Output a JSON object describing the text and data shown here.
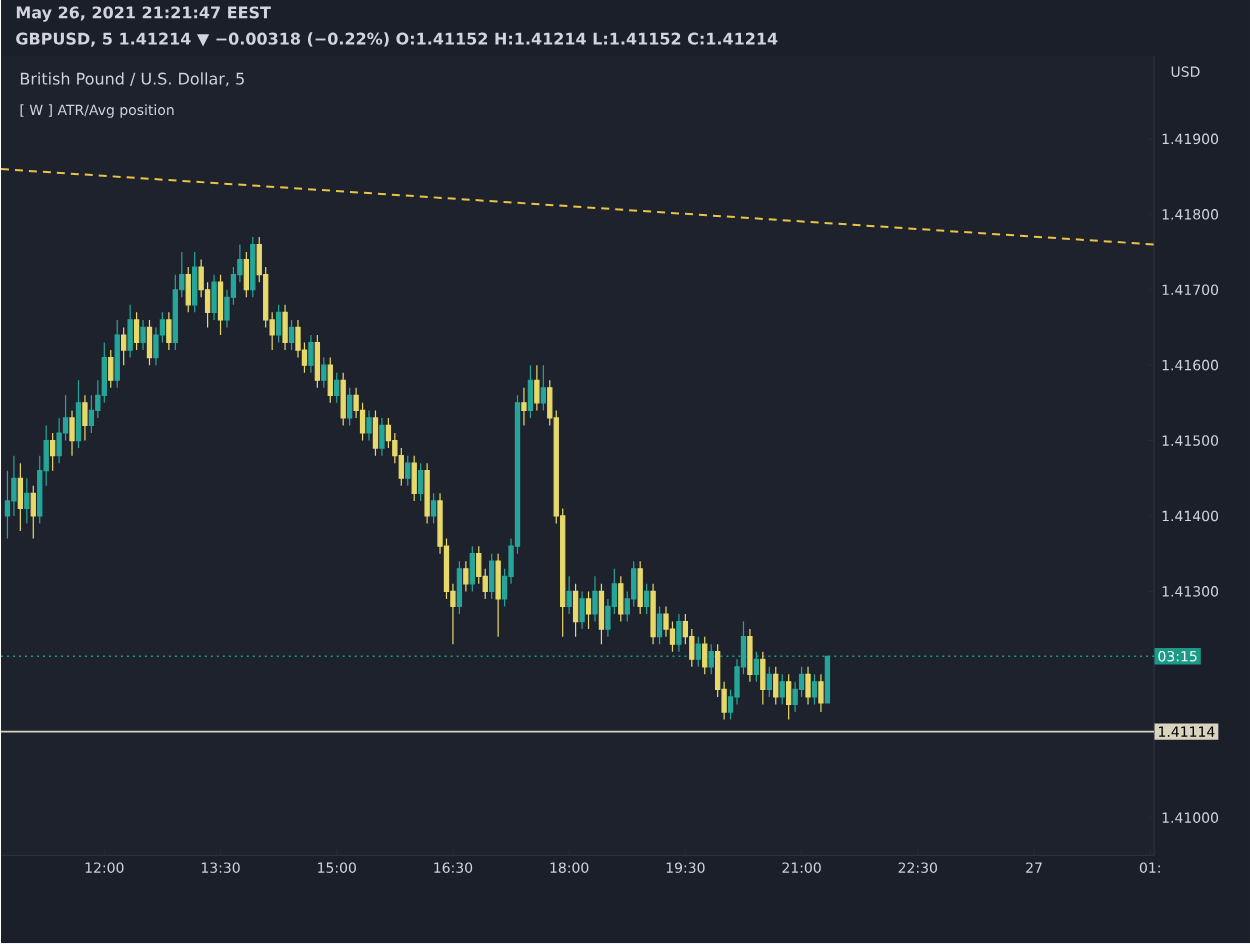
{
  "chart_data": {
    "type": "candlestick",
    "title": "British Pound / U.S. Dollar, 5",
    "annotations": [
      "May 26, 2021 21:21:47 EEST",
      "GBPUSD, 5  1.41214 ▼ −0.00318 (−0.22%)  O:1.41152  H:1.41214  L:1.41152  C:1.41214",
      "[ W ] ATR/Avg position",
      "USD",
      {
        "text": "03:15",
        "y": 1.41214
      }
    ],
    "colors": [
      "#26a69a",
      "#26a69a",
      "#e8d96a",
      "#26a69a",
      "#e8d96a",
      "#26a69a",
      "#26a69a",
      "#e8d96a",
      "#26a69a",
      "#26a69a",
      "#e8d96a",
      "#26a69a",
      "#e8d96a",
      "#26a69a",
      "#26a69a",
      "#26a69a",
      "#e8d96a",
      "#26a69a",
      "#e8d96a",
      "#26a69a",
      "#e8d96a",
      "#26a69a",
      "#e8d96a",
      "#26a69a",
      "#26a69a",
      "#e8d96a",
      "#26a69a",
      "#26a69a",
      "#e8d96a",
      "#26a69a",
      "#e8d96a",
      "#e8d96a",
      "#26a69a",
      "#e8d96a",
      "#26a69a",
      "#26a69a",
      "#26a69a",
      "#e8d96a",
      "#26a69a",
      "#e8d96a",
      "#e8d96a",
      "#e8d96a",
      "#26a69a",
      "#e8d96a",
      "#26a69a",
      "#e8d96a",
      "#e8d96a",
      "#26a69a",
      "#e8d96a",
      "#26a69a",
      "#e8d96a",
      "#26a69a",
      "#e8d96a",
      "#26a69a",
      "#e8d96a",
      "#e8d96a",
      "#26a69a",
      "#e8d96a",
      "#26a69a",
      "#e8d96a",
      "#e8d96a",
      "#e8d96a",
      "#26a69a",
      "#e8d96a",
      "#26a69a",
      "#e8d96a",
      "#26a69a",
      "#e8d96a",
      "#e8d96a",
      "#e8d96a",
      "#26a69a",
      "#e8d96a",
      "#26a69a",
      "#e8d96a",
      "#e8d96a",
      "#26a69a",
      "#e8d96a",
      "#26a69a",
      "#26a69a",
      "#26a69a",
      "#e8d96a",
      "#26a69a",
      "#e8d96a",
      "#26a69a",
      "#e8d96a",
      "#e8d96a",
      "#e8d96a",
      "#26a69a",
      "#e8d96a",
      "#26a69a",
      "#e8d96a",
      "#26a69a",
      "#e8d96a",
      "#26a69a",
      "#26a69a",
      "#e8d96a",
      "#26a69a",
      "#26a69a",
      "#e8d96a",
      "#26a69a",
      "#e8d96a",
      "#26a69a",
      "#e8d96a",
      "#e8d96a",
      "#26a69a",
      "#e8d96a",
      "#e8d96a",
      "#26a69a",
      "#e8d96a",
      "#26a69a",
      "#e8d96a",
      "#e8d96a",
      "#26a69a",
      "#26a69a",
      "#26a69a",
      "#e8d96a",
      "#26a69a",
      "#e8d96a",
      "#26a69a",
      "#e8d96a",
      "#26a69a",
      "#e8d96a",
      "#26a69a",
      "#26a69a",
      "#e8d96a",
      "#26a69a",
      "#e8d96a",
      "#26a69a"
    ],
    "x": [
      "2021-05-26T10:45",
      "2021-05-26T10:50",
      "2021-05-26T10:55",
      "2021-05-26T11:00",
      "2021-05-26T11:05",
      "2021-05-26T11:10",
      "2021-05-26T11:15",
      "2021-05-26T11:20",
      "2021-05-26T11:25",
      "2021-05-26T11:30",
      "2021-05-26T11:35",
      "2021-05-26T11:40",
      "2021-05-26T11:45",
      "2021-05-26T11:50",
      "2021-05-26T11:55",
      "2021-05-26T12:00",
      "2021-05-26T12:05",
      "2021-05-26T12:10",
      "2021-05-26T12:15",
      "2021-05-26T12:20",
      "2021-05-26T12:25",
      "2021-05-26T12:30",
      "2021-05-26T12:35",
      "2021-05-26T12:40",
      "2021-05-26T12:45",
      "2021-05-26T12:50",
      "2021-05-26T12:55",
      "2021-05-26T13:00",
      "2021-05-26T13:05",
      "2021-05-26T13:10",
      "2021-05-26T13:15",
      "2021-05-26T13:20",
      "2021-05-26T13:25",
      "2021-05-26T13:30",
      "2021-05-26T13:35",
      "2021-05-26T13:40",
      "2021-05-26T13:45",
      "2021-05-26T13:50",
      "2021-05-26T13:55",
      "2021-05-26T14:00",
      "2021-05-26T14:05",
      "2021-05-26T14:10",
      "2021-05-26T14:15",
      "2021-05-26T14:20",
      "2021-05-26T14:25",
      "2021-05-26T14:30",
      "2021-05-26T14:35",
      "2021-05-26T14:40",
      "2021-05-26T14:45",
      "2021-05-26T14:50",
      "2021-05-26T14:55",
      "2021-05-26T15:00",
      "2021-05-26T15:05",
      "2021-05-26T15:10",
      "2021-05-26T15:15",
      "2021-05-26T15:20",
      "2021-05-26T15:25",
      "2021-05-26T15:30",
      "2021-05-26T15:35",
      "2021-05-26T15:40",
      "2021-05-26T15:45",
      "2021-05-26T15:50",
      "2021-05-26T15:55",
      "2021-05-26T16:00",
      "2021-05-26T16:05",
      "2021-05-26T16:10",
      "2021-05-26T16:15",
      "2021-05-26T16:20",
      "2021-05-26T16:25",
      "2021-05-26T16:30",
      "2021-05-26T16:35",
      "2021-05-26T16:40",
      "2021-05-26T16:45",
      "2021-05-26T16:50",
      "2021-05-26T16:55",
      "2021-05-26T17:00",
      "2021-05-26T17:05",
      "2021-05-26T17:10",
      "2021-05-26T17:15",
      "2021-05-26T17:20",
      "2021-05-26T17:25",
      "2021-05-26T17:30",
      "2021-05-26T17:35",
      "2021-05-26T17:40",
      "2021-05-26T17:45",
      "2021-05-26T17:50",
      "2021-05-26T17:55",
      "2021-05-26T18:00",
      "2021-05-26T18:05",
      "2021-05-26T18:10",
      "2021-05-26T18:15",
      "2021-05-26T18:20",
      "2021-05-26T18:25",
      "2021-05-26T18:30",
      "2021-05-26T18:35",
      "2021-05-26T18:40",
      "2021-05-26T18:45",
      "2021-05-26T18:50",
      "2021-05-26T18:55",
      "2021-05-26T19:00",
      "2021-05-26T19:05",
      "2021-05-26T19:10",
      "2021-05-26T19:15",
      "2021-05-26T19:20",
      "2021-05-26T19:25",
      "2021-05-26T19:30",
      "2021-05-26T19:35",
      "2021-05-26T19:40",
      "2021-05-26T19:45",
      "2021-05-26T19:50",
      "2021-05-26T19:55",
      "2021-05-26T20:00",
      "2021-05-26T20:05",
      "2021-05-26T20:10",
      "2021-05-26T20:15",
      "2021-05-26T20:20",
      "2021-05-26T20:25",
      "2021-05-26T20:30",
      "2021-05-26T20:35",
      "2021-05-26T20:40",
      "2021-05-26T20:45",
      "2021-05-26T20:50",
      "2021-05-26T20:55",
      "2021-05-26T21:00",
      "2021-05-26T21:05",
      "2021-05-26T21:10",
      "2021-05-26T21:15",
      "2021-05-26T21:20"
    ],
    "ohlc": [
      [
        1.414,
        1.4146,
        1.4137,
        1.4142
      ],
      [
        1.4142,
        1.4148,
        1.414,
        1.4145
      ],
      [
        1.4145,
        1.4147,
        1.4138,
        1.4141
      ],
      [
        1.4141,
        1.4145,
        1.4139,
        1.4143
      ],
      [
        1.4143,
        1.4144,
        1.4137,
        1.414
      ],
      [
        1.414,
        1.4148,
        1.4139,
        1.4146
      ],
      [
        1.4146,
        1.4152,
        1.4144,
        1.415
      ],
      [
        1.415,
        1.4151,
        1.4146,
        1.4148
      ],
      [
        1.4148,
        1.4153,
        1.4147,
        1.4151
      ],
      [
        1.4151,
        1.4156,
        1.415,
        1.4153
      ],
      [
        1.4153,
        1.4154,
        1.4148,
        1.415
      ],
      [
        1.415,
        1.4158,
        1.4149,
        1.4155
      ],
      [
        1.4155,
        1.4156,
        1.415,
        1.4152
      ],
      [
        1.4152,
        1.4156,
        1.4151,
        1.4154
      ],
      [
        1.4154,
        1.4158,
        1.4153,
        1.4156
      ],
      [
        1.4156,
        1.4163,
        1.4155,
        1.4161
      ],
      [
        1.4161,
        1.4162,
        1.4157,
        1.4158
      ],
      [
        1.4158,
        1.4166,
        1.4157,
        1.4164
      ],
      [
        1.4164,
        1.4165,
        1.416,
        1.4162
      ],
      [
        1.4162,
        1.4168,
        1.4161,
        1.4166
      ],
      [
        1.4166,
        1.4167,
        1.4162,
        1.4163
      ],
      [
        1.4163,
        1.4166,
        1.4162,
        1.4165
      ],
      [
        1.4165,
        1.4166,
        1.416,
        1.4161
      ],
      [
        1.4161,
        1.4165,
        1.416,
        1.4164
      ],
      [
        1.4164,
        1.4167,
        1.4163,
        1.4166
      ],
      [
        1.4166,
        1.4167,
        1.4162,
        1.4163
      ],
      [
        1.4163,
        1.4172,
        1.4162,
        1.417
      ],
      [
        1.417,
        1.4175,
        1.4169,
        1.4172
      ],
      [
        1.4172,
        1.4173,
        1.4167,
        1.4168
      ],
      [
        1.4168,
        1.4175,
        1.4167,
        1.4173
      ],
      [
        1.4173,
        1.4174,
        1.4169,
        1.417
      ],
      [
        1.417,
        1.4171,
        1.4165,
        1.4167
      ],
      [
        1.4167,
        1.4172,
        1.4166,
        1.4171
      ],
      [
        1.4171,
        1.4172,
        1.4164,
        1.4166
      ],
      [
        1.4166,
        1.417,
        1.4165,
        1.4169
      ],
      [
        1.4169,
        1.4173,
        1.4168,
        1.4172
      ],
      [
        1.4172,
        1.4176,
        1.4171,
        1.4174
      ],
      [
        1.4174,
        1.4175,
        1.4169,
        1.417
      ],
      [
        1.417,
        1.4177,
        1.4169,
        1.4176
      ],
      [
        1.4176,
        1.4177,
        1.4171,
        1.4172
      ],
      [
        1.4172,
        1.4173,
        1.4165,
        1.4166
      ],
      [
        1.4166,
        1.4167,
        1.4162,
        1.4164
      ],
      [
        1.4164,
        1.4168,
        1.4163,
        1.4167
      ],
      [
        1.4167,
        1.4168,
        1.4162,
        1.4163
      ],
      [
        1.4163,
        1.4166,
        1.4162,
        1.4165
      ],
      [
        1.4165,
        1.4166,
        1.4161,
        1.4162
      ],
      [
        1.4162,
        1.4163,
        1.4159,
        1.416
      ],
      [
        1.416,
        1.4164,
        1.4159,
        1.4163
      ],
      [
        1.4163,
        1.4164,
        1.4157,
        1.4158
      ],
      [
        1.4158,
        1.4161,
        1.4157,
        1.416
      ],
      [
        1.416,
        1.4161,
        1.4155,
        1.4156
      ],
      [
        1.4156,
        1.4159,
        1.4155,
        1.4158
      ],
      [
        1.4158,
        1.4159,
        1.4152,
        1.4153
      ],
      [
        1.4153,
        1.4157,
        1.4152,
        1.4156
      ],
      [
        1.4156,
        1.4157,
        1.4153,
        1.4154
      ],
      [
        1.4154,
        1.4155,
        1.415,
        1.4151
      ],
      [
        1.4151,
        1.4154,
        1.415,
        1.4153
      ],
      [
        1.4153,
        1.4154,
        1.4148,
        1.4149
      ],
      [
        1.4149,
        1.4153,
        1.4148,
        1.4152
      ],
      [
        1.4152,
        1.4153,
        1.4149,
        1.415
      ],
      [
        1.415,
        1.4151,
        1.4147,
        1.4148
      ],
      [
        1.4148,
        1.4149,
        1.4144,
        1.4145
      ],
      [
        1.4145,
        1.4148,
        1.4144,
        1.4147
      ],
      [
        1.4147,
        1.4148,
        1.4142,
        1.4143
      ],
      [
        1.4143,
        1.4147,
        1.4142,
        1.4146
      ],
      [
        1.4146,
        1.4147,
        1.4139,
        1.414
      ],
      [
        1.414,
        1.4143,
        1.4139,
        1.4142
      ],
      [
        1.4142,
        1.4143,
        1.4135,
        1.4136
      ],
      [
        1.4136,
        1.4137,
        1.4129,
        1.413
      ],
      [
        1.413,
        1.4131,
        1.4123,
        1.4128
      ],
      [
        1.4128,
        1.4134,
        1.4127,
        1.4133
      ],
      [
        1.4133,
        1.4134,
        1.413,
        1.4131
      ],
      [
        1.4131,
        1.4136,
        1.413,
        1.4135
      ],
      [
        1.4135,
        1.4136,
        1.4131,
        1.4132
      ],
      [
        1.4132,
        1.4133,
        1.4129,
        1.413
      ],
      [
        1.413,
        1.4135,
        1.4129,
        1.4134
      ],
      [
        1.4134,
        1.4135,
        1.4124,
        1.4129
      ],
      [
        1.4129,
        1.4133,
        1.4128,
        1.4132
      ],
      [
        1.4132,
        1.4137,
        1.4131,
        1.4136
      ],
      [
        1.4136,
        1.4156,
        1.4135,
        1.4155
      ],
      [
        1.4155,
        1.4157,
        1.4152,
        1.4154
      ],
      [
        1.4154,
        1.416,
        1.4153,
        1.4158
      ],
      [
        1.4158,
        1.416,
        1.4154,
        1.4155
      ],
      [
        1.4155,
        1.416,
        1.4154,
        1.4157
      ],
      [
        1.4157,
        1.4158,
        1.4152,
        1.4153
      ],
      [
        1.4153,
        1.4154,
        1.4139,
        1.414
      ],
      [
        1.414,
        1.4141,
        1.4124,
        1.4128
      ],
      [
        1.4128,
        1.4132,
        1.4127,
        1.413
      ],
      [
        1.413,
        1.4131,
        1.4124,
        1.4126
      ],
      [
        1.4126,
        1.413,
        1.4125,
        1.4129
      ],
      [
        1.4129,
        1.413,
        1.4125,
        1.4127
      ],
      [
        1.4127,
        1.4132,
        1.4126,
        1.413
      ],
      [
        1.413,
        1.4131,
        1.4123,
        1.4125
      ],
      [
        1.4125,
        1.4129,
        1.4124,
        1.4128
      ],
      [
        1.4128,
        1.4133,
        1.4127,
        1.4131
      ],
      [
        1.4131,
        1.4132,
        1.4126,
        1.4127
      ],
      [
        1.4127,
        1.413,
        1.4126,
        1.4129
      ],
      [
        1.4129,
        1.4134,
        1.4128,
        1.4133
      ],
      [
        1.4133,
        1.4134,
        1.4127,
        1.4128
      ],
      [
        1.4128,
        1.4131,
        1.4127,
        1.413
      ],
      [
        1.413,
        1.4131,
        1.4123,
        1.4124
      ],
      [
        1.4124,
        1.4128,
        1.4123,
        1.4127
      ],
      [
        1.4127,
        1.4128,
        1.4124,
        1.4125
      ],
      [
        1.4125,
        1.4126,
        1.4122,
        1.4123
      ],
      [
        1.4123,
        1.4127,
        1.4122,
        1.4126
      ],
      [
        1.4126,
        1.4127,
        1.4123,
        1.4124
      ],
      [
        1.4124,
        1.4125,
        1.412,
        1.4121
      ],
      [
        1.4121,
        1.4124,
        1.412,
        1.4123
      ],
      [
        1.4123,
        1.4124,
        1.4119,
        1.412
      ],
      [
        1.412,
        1.4123,
        1.4119,
        1.4122
      ],
      [
        1.4122,
        1.4123,
        1.4116,
        1.4117
      ],
      [
        1.4117,
        1.4118,
        1.4113,
        1.4114
      ],
      [
        1.4114,
        1.4117,
        1.4113,
        1.4116
      ],
      [
        1.4116,
        1.4121,
        1.4115,
        1.412
      ],
      [
        1.412,
        1.4126,
        1.4119,
        1.4124
      ],
      [
        1.4124,
        1.4125,
        1.4118,
        1.4119
      ],
      [
        1.4119,
        1.4122,
        1.4118,
        1.4121
      ],
      [
        1.4121,
        1.4122,
        1.4115,
        1.4117
      ],
      [
        1.4117,
        1.412,
        1.4116,
        1.4119
      ],
      [
        1.4119,
        1.412,
        1.4115,
        1.4116
      ],
      [
        1.4116,
        1.4119,
        1.4115,
        1.4118
      ],
      [
        1.4118,
        1.4119,
        1.4113,
        1.4115
      ],
      [
        1.4115,
        1.4118,
        1.4114,
        1.4117
      ],
      [
        1.4117,
        1.412,
        1.4116,
        1.4119
      ],
      [
        1.4119,
        1.412,
        1.4115,
        1.4116
      ],
      [
        1.4116,
        1.4119,
        1.4115,
        1.4118
      ],
      [
        1.4118,
        1.4119,
        1.4114,
        1.41152
      ],
      [
        1.41152,
        1.41214,
        1.41152,
        1.41214
      ]
    ],
    "series": [
      {
        "type": "line",
        "color": "#e8c547",
        "line_style": "dashed",
        "x": [
          "2021-05-26T10:40",
          "2021-05-27T01:33"
        ],
        "values": [
          1.4186,
          1.4176
        ]
      }
    ],
    "ref_lines": [
      {
        "axis": "y",
        "value": 1.41114,
        "label": "1.41114",
        "color": "#d8d4bd",
        "line_style": "solid"
      },
      {
        "axis": "y",
        "value": 1.41214,
        "color": "#1b9a87",
        "line_style": "dotted"
      }
    ],
    "xlim": [
      "2021-05-26T10:40",
      "2021-05-27T01:33"
    ],
    "xticks": [
      {
        "value": "2021-05-26T12:00",
        "label": "12:00"
      },
      {
        "value": "2021-05-26T13:30",
        "label": "13:30"
      },
      {
        "value": "2021-05-26T15:00",
        "label": "15:00"
      },
      {
        "value": "2021-05-26T16:30",
        "label": "16:30"
      },
      {
        "value": "2021-05-26T18:00",
        "label": "18:00"
      },
      {
        "value": "2021-05-26T19:30",
        "label": "19:30"
      },
      {
        "value": "2021-05-26T21:00",
        "label": "21:00"
      },
      {
        "value": "2021-05-26T22:30",
        "label": "22:30"
      },
      {
        "value": "2021-05-27T00:00",
        "label": "27"
      },
      {
        "value": "2021-05-27T01:30",
        "label": "01:"
      }
    ],
    "ylim": [
      1.4095,
      1.4201
    ],
    "yticks": [
      {
        "value": 1.41,
        "label": "1.41000"
      },
      {
        "value": 1.413,
        "label": "1.41300"
      },
      {
        "value": 1.414,
        "label": "1.41400"
      },
      {
        "value": 1.415,
        "label": "1.41500"
      },
      {
        "value": 1.416,
        "label": "1.41600"
      },
      {
        "value": 1.417,
        "label": "1.41700"
      },
      {
        "value": 1.418,
        "label": "1.41800"
      },
      {
        "value": 1.419,
        "label": "1.41900"
      }
    ]
  }
}
